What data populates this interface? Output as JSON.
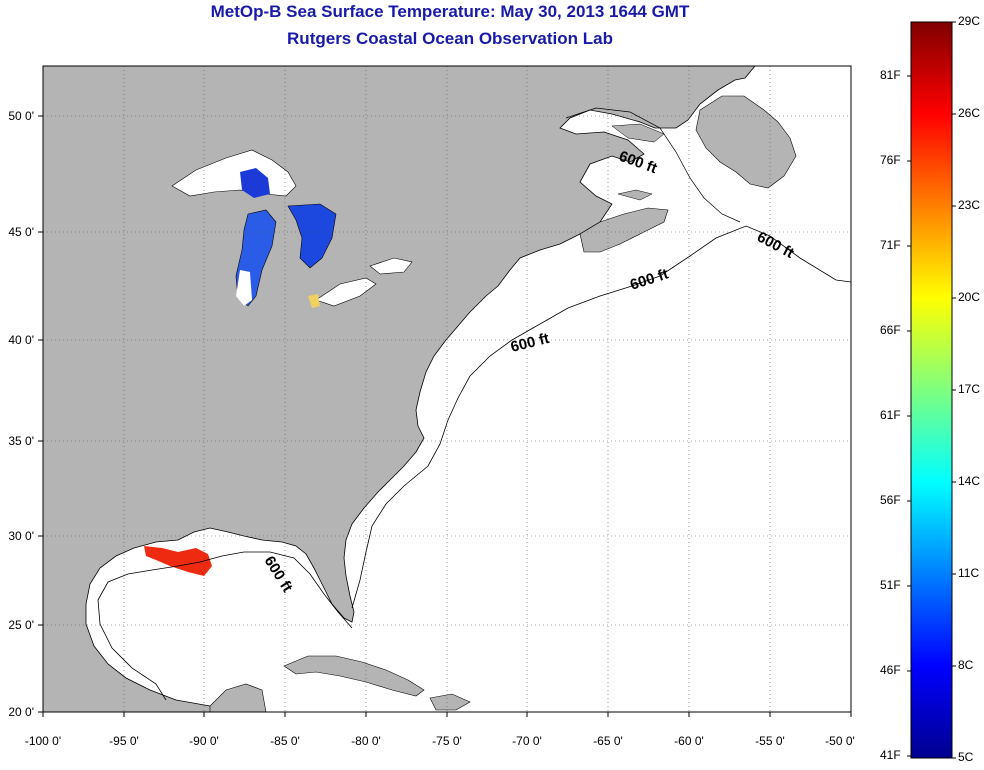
{
  "title": "MetOp-B Sea Surface Temperature:  May 30, 2013 1644 GMT",
  "subtitle": "Rutgers Coastal Ocean Observation Lab",
  "axes": {
    "lon_labels": [
      "-100 0'",
      "-95 0'",
      "-90 0'",
      "-85 0'",
      "-80 0'",
      "-75 0'",
      "-70 0'",
      "-65 0'",
      "-60 0'",
      "-55 0'",
      "-50 0'"
    ],
    "lat_labels": [
      "50 0'",
      "45 0'",
      "40 0'",
      "35 0'",
      "30 0'",
      "25 0'",
      "20 0'"
    ]
  },
  "contour_labels": [
    "600 ft",
    "600 ft",
    "600 ft",
    "600 ft",
    "600 ft"
  ],
  "colorbar": {
    "celsius": [
      "29C",
      "26C",
      "23C",
      "20C",
      "17C",
      "14C",
      "11C",
      "8C",
      "5C"
    ],
    "fahrenheit": [
      "81F",
      "76F",
      "71F",
      "66F",
      "61F",
      "56F",
      "51F",
      "46F",
      "41F"
    ]
  },
  "colors": {
    "land": "#b4b4b4",
    "ocean": "#ffffff",
    "title": "#1a1aaa",
    "warm_sst": "#ee2a10",
    "cold_sst": "#1c3ad8"
  }
}
